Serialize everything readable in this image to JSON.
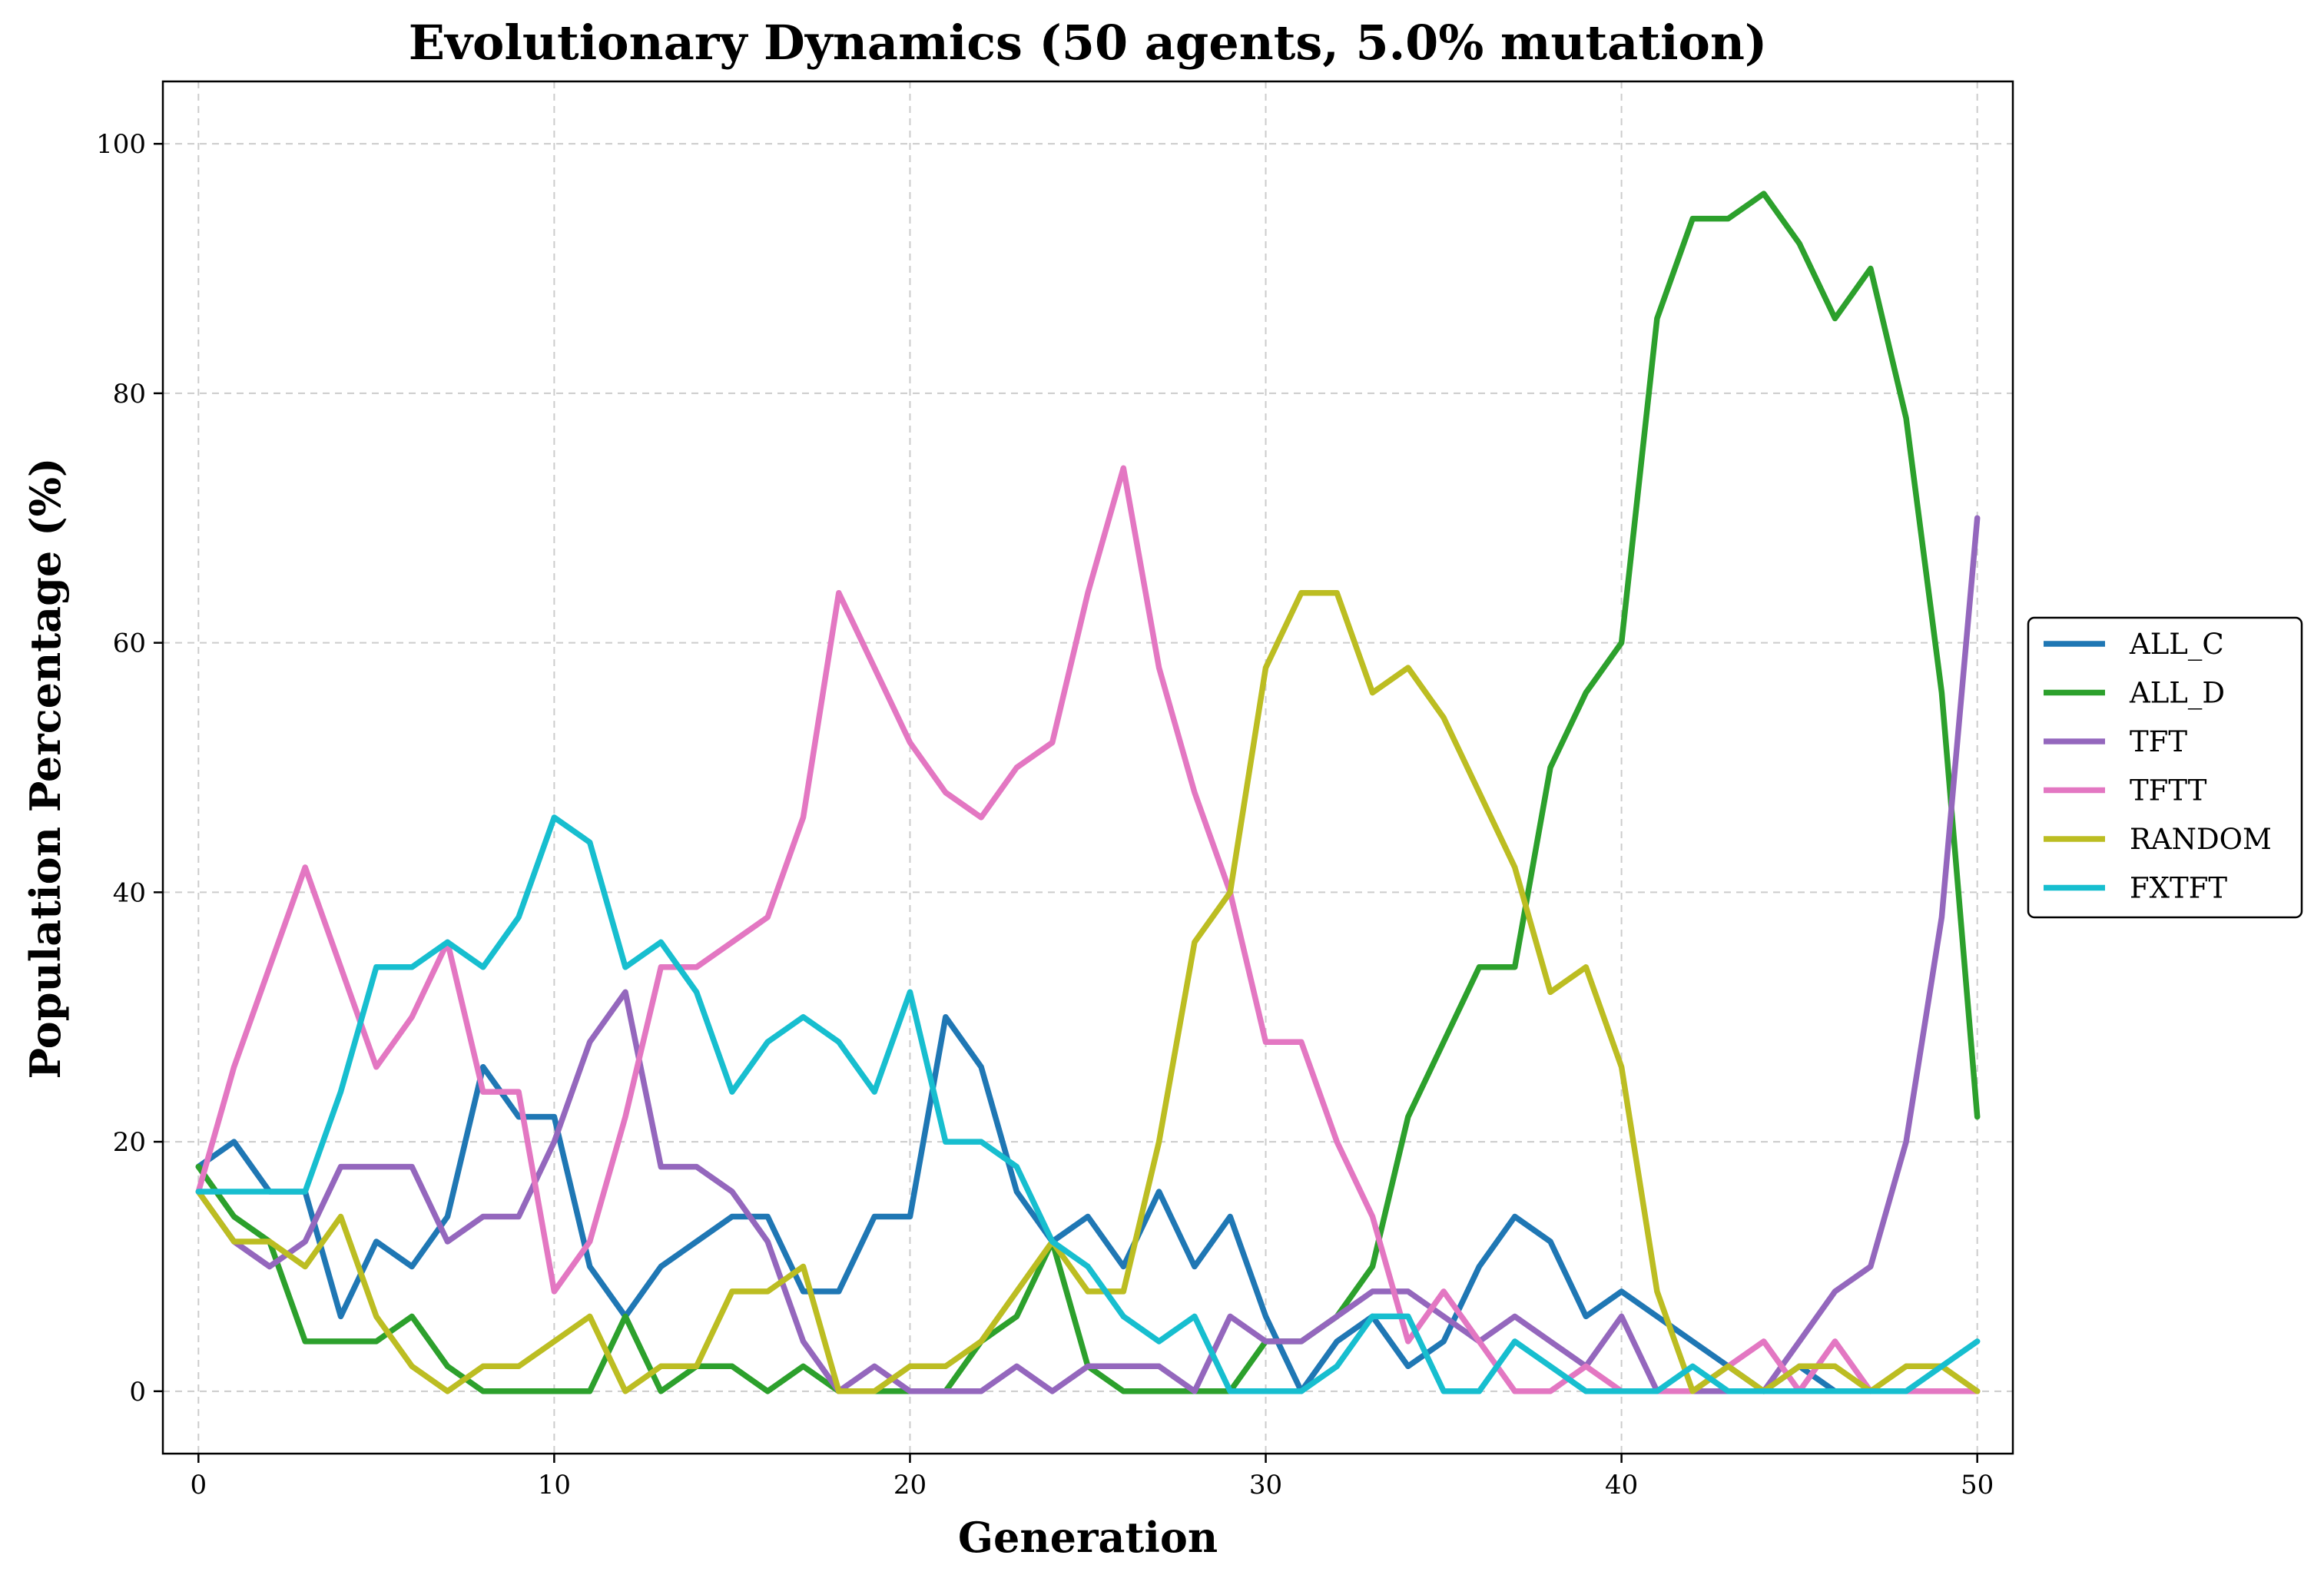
{
  "chart_data": {
    "type": "line",
    "title": "Evolutionary Dynamics (50 agents, 5.0% mutation)",
    "xlabel": "Generation",
    "ylabel": "Population Percentage (%)",
    "xlim": [
      -1,
      51
    ],
    "ylim": [
      -5,
      105
    ],
    "xticks": [
      0,
      10,
      20,
      30,
      40,
      50
    ],
    "yticks": [
      0,
      20,
      40,
      60,
      80,
      100
    ],
    "grid": true,
    "legend_position": "right, outside plot",
    "x": [
      0,
      1,
      2,
      3,
      4,
      5,
      6,
      7,
      8,
      9,
      10,
      11,
      12,
      13,
      14,
      15,
      16,
      17,
      18,
      19,
      20,
      21,
      22,
      23,
      24,
      25,
      26,
      27,
      28,
      29,
      30,
      31,
      32,
      33,
      34,
      35,
      36,
      37,
      38,
      39,
      40,
      41,
      42,
      43,
      44,
      45,
      46,
      47,
      48,
      49,
      50
    ],
    "series": [
      {
        "name": "ALL_C",
        "color": "#1f77b4",
        "values": [
          18,
          20,
          16,
          16,
          6,
          12,
          10,
          14,
          26,
          22,
          22,
          10,
          6,
          10,
          12,
          14,
          14,
          8,
          8,
          14,
          14,
          30,
          26,
          16,
          12,
          14,
          10,
          16,
          10,
          14,
          6,
          0,
          4,
          6,
          2,
          4,
          10,
          14,
          12,
          6,
          8,
          6,
          4,
          2,
          0,
          2,
          0,
          0,
          0,
          0,
          0
        ]
      },
      {
        "name": "ALL_D",
        "color": "#2ca02c",
        "values": [
          18,
          14,
          12,
          4,
          4,
          4,
          6,
          2,
          0,
          0,
          0,
          0,
          6,
          0,
          2,
          2,
          0,
          2,
          0,
          0,
          0,
          0,
          4,
          6,
          12,
          2,
          0,
          0,
          0,
          0,
          4,
          4,
          6,
          10,
          22,
          28,
          34,
          34,
          50,
          56,
          60,
          86,
          94,
          94,
          96,
          92,
          86,
          90,
          78,
          56,
          22
        ]
      },
      {
        "name": "TFT",
        "color": "#9467bd",
        "values": [
          16,
          12,
          10,
          12,
          18,
          18,
          18,
          12,
          14,
          14,
          20,
          28,
          32,
          18,
          18,
          16,
          12,
          4,
          0,
          2,
          0,
          0,
          0,
          2,
          0,
          2,
          2,
          2,
          0,
          6,
          4,
          4,
          6,
          8,
          8,
          6,
          4,
          6,
          4,
          2,
          6,
          0,
          0,
          0,
          0,
          4,
          8,
          10,
          20,
          38,
          70
        ]
      },
      {
        "name": "TFTT",
        "color": "#e377c2",
        "values": [
          16,
          26,
          34,
          42,
          34,
          26,
          30,
          36,
          24,
          24,
          8,
          12,
          22,
          34,
          34,
          36,
          38,
          46,
          64,
          58,
          52,
          48,
          46,
          50,
          52,
          64,
          74,
          58,
          48,
          40,
          28,
          28,
          20,
          14,
          4,
          8,
          4,
          0,
          0,
          2,
          0,
          0,
          0,
          2,
          4,
          0,
          4,
          0,
          0,
          0,
          0
        ]
      },
      {
        "name": "RANDOM",
        "color": "#bcbd22",
        "values": [
          16,
          12,
          12,
          10,
          14,
          6,
          2,
          0,
          2,
          2,
          4,
          6,
          0,
          2,
          2,
          8,
          8,
          10,
          0,
          0,
          2,
          2,
          4,
          8,
          12,
          8,
          8,
          20,
          36,
          40,
          58,
          64,
          64,
          56,
          58,
          54,
          48,
          42,
          32,
          34,
          26,
          8,
          0,
          2,
          0,
          2,
          2,
          0,
          2,
          2,
          0
        ]
      },
      {
        "name": "FXTFT",
        "color": "#17becf",
        "values": [
          16,
          16,
          16,
          16,
          24,
          34,
          34,
          36,
          34,
          38,
          46,
          44,
          34,
          36,
          32,
          24,
          28,
          30,
          28,
          24,
          32,
          20,
          20,
          18,
          12,
          10,
          6,
          4,
          6,
          0,
          0,
          0,
          2,
          6,
          6,
          0,
          0,
          4,
          2,
          0,
          0,
          0,
          2,
          0,
          0,
          0,
          0,
          0,
          0,
          2,
          4
        ]
      }
    ]
  }
}
